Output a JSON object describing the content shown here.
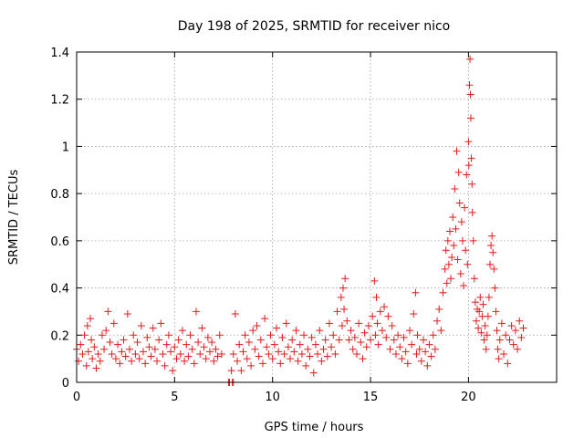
{
  "chart_data": {
    "type": "scatter",
    "title": "Day 198 of 2025, SRMTID for receiver nico",
    "xlabel": "GPS time / hours",
    "ylabel": "SRMTID / TECUs",
    "xlim": [
      0,
      24.5
    ],
    "ylim": [
      0,
      1.4
    ],
    "xticks": [
      0,
      5,
      10,
      15,
      20
    ],
    "yticks": [
      0,
      0.2,
      0.4,
      0.6,
      0.8,
      1.0,
      1.2,
      1.4
    ],
    "xtick_labels": [
      "0",
      "5",
      "10",
      "15",
      "20"
    ],
    "ytick_labels": [
      "0",
      "0.2",
      "0.4",
      "0.6",
      "0.8",
      "1",
      "1.2",
      "1.4"
    ],
    "grid": true,
    "marker": "+",
    "color": "#e41a1c",
    "series": [
      {
        "name": "SRMTID",
        "points": [
          [
            0.0,
            0.14
          ],
          [
            0.1,
            0.09
          ],
          [
            0.2,
            0.16
          ],
          [
            0.3,
            0.12
          ],
          [
            0.4,
            0.2
          ],
          [
            0.5,
            0.07
          ],
          [
            0.55,
            0.24
          ],
          [
            0.6,
            0.13
          ],
          [
            0.7,
            0.27
          ],
          [
            0.75,
            0.18
          ],
          [
            0.8,
            0.1
          ],
          [
            0.9,
            0.15
          ],
          [
            1.0,
            0.06
          ],
          [
            1.1,
            0.12
          ],
          [
            1.2,
            0.09
          ],
          [
            1.3,
            0.2
          ],
          [
            1.4,
            0.14
          ],
          [
            1.5,
            0.22
          ],
          [
            1.6,
            0.3
          ],
          [
            1.7,
            0.17
          ],
          [
            1.8,
            0.12
          ],
          [
            1.9,
            0.25
          ],
          [
            2.0,
            0.1
          ],
          [
            2.1,
            0.16
          ],
          [
            2.2,
            0.08
          ],
          [
            2.3,
            0.13
          ],
          [
            2.4,
            0.18
          ],
          [
            2.5,
            0.11
          ],
          [
            2.6,
            0.29
          ],
          [
            2.7,
            0.14
          ],
          [
            2.8,
            0.09
          ],
          [
            2.9,
            0.2
          ],
          [
            3.0,
            0.12
          ],
          [
            3.1,
            0.17
          ],
          [
            3.2,
            0.1
          ],
          [
            3.3,
            0.24
          ],
          [
            3.4,
            0.13
          ],
          [
            3.5,
            0.08
          ],
          [
            3.6,
            0.19
          ],
          [
            3.7,
            0.15
          ],
          [
            3.8,
            0.11
          ],
          [
            3.9,
            0.23
          ],
          [
            4.0,
            0.14
          ],
          [
            4.1,
            0.09
          ],
          [
            4.2,
            0.18
          ],
          [
            4.3,
            0.25
          ],
          [
            4.4,
            0.12
          ],
          [
            4.5,
            0.07
          ],
          [
            4.6,
            0.16
          ],
          [
            4.7,
            0.2
          ],
          [
            4.8,
            0.13
          ],
          [
            4.9,
            0.05
          ],
          [
            5.0,
            0.15
          ],
          [
            5.1,
            0.1
          ],
          [
            5.2,
            0.18
          ],
          [
            5.3,
            0.12
          ],
          [
            5.4,
            0.22
          ],
          [
            5.5,
            0.09
          ],
          [
            5.6,
            0.16
          ],
          [
            5.7,
            0.11
          ],
          [
            5.8,
            0.2
          ],
          [
            5.9,
            0.14
          ],
          [
            6.0,
            0.08
          ],
          [
            6.1,
            0.3
          ],
          [
            6.2,
            0.17
          ],
          [
            6.3,
            0.12
          ],
          [
            6.4,
            0.23
          ],
          [
            6.5,
            0.15
          ],
          [
            6.6,
            0.1
          ],
          [
            6.7,
            0.19
          ],
          [
            6.8,
            0.13
          ],
          [
            6.9,
            0.17
          ],
          [
            7.0,
            0.09
          ],
          [
            7.1,
            0.14
          ],
          [
            7.2,
            0.11
          ],
          [
            7.3,
            0.2
          ],
          [
            7.4,
            0.12
          ],
          [
            7.75,
            0.0
          ],
          [
            7.8,
            0.0
          ],
          [
            7.95,
            0.0
          ],
          [
            8.0,
            0.0
          ],
          [
            7.9,
            0.05
          ],
          [
            8.0,
            0.12
          ],
          [
            8.1,
            0.29
          ],
          [
            8.2,
            0.09
          ],
          [
            8.3,
            0.16
          ],
          [
            8.4,
            0.05
          ],
          [
            8.5,
            0.13
          ],
          [
            8.6,
            0.2
          ],
          [
            8.7,
            0.1
          ],
          [
            8.8,
            0.17
          ],
          [
            8.9,
            0.07
          ],
          [
            9.0,
            0.22
          ],
          [
            9.1,
            0.14
          ],
          [
            9.2,
            0.24
          ],
          [
            9.3,
            0.11
          ],
          [
            9.4,
            0.18
          ],
          [
            9.5,
            0.08
          ],
          [
            9.6,
            0.27
          ],
          [
            9.7,
            0.15
          ],
          [
            9.8,
            0.12
          ],
          [
            9.9,
            0.2
          ],
          [
            10.0,
            0.1
          ],
          [
            10.1,
            0.16
          ],
          [
            10.2,
            0.23
          ],
          [
            10.3,
            0.13
          ],
          [
            10.4,
            0.08
          ],
          [
            10.5,
            0.19
          ],
          [
            10.6,
            0.12
          ],
          [
            10.7,
            0.25
          ],
          [
            10.8,
            0.15
          ],
          [
            10.9,
            0.1
          ],
          [
            11.0,
            0.18
          ],
          [
            11.1,
            0.13
          ],
          [
            11.2,
            0.22
          ],
          [
            11.3,
            0.09
          ],
          [
            11.4,
            0.16
          ],
          [
            11.5,
            0.12
          ],
          [
            11.6,
            0.2
          ],
          [
            11.7,
            0.07
          ],
          [
            11.8,
            0.14
          ],
          [
            11.9,
            0.11
          ],
          [
            12.0,
            0.19
          ],
          [
            12.1,
            0.04
          ],
          [
            12.2,
            0.16
          ],
          [
            12.3,
            0.12
          ],
          [
            12.4,
            0.22
          ],
          [
            12.5,
            0.09
          ],
          [
            12.6,
            0.14
          ],
          [
            12.7,
            0.18
          ],
          [
            12.8,
            0.11
          ],
          [
            12.9,
            0.25
          ],
          [
            13.0,
            0.15
          ],
          [
            13.1,
            0.2
          ],
          [
            13.2,
            0.12
          ],
          [
            13.3,
            0.3
          ],
          [
            13.4,
            0.18
          ],
          [
            13.5,
            0.36
          ],
          [
            13.55,
            0.24
          ],
          [
            13.6,
            0.4
          ],
          [
            13.65,
            0.31
          ],
          [
            13.7,
            0.44
          ],
          [
            13.8,
            0.26
          ],
          [
            13.9,
            0.18
          ],
          [
            14.0,
            0.22
          ],
          [
            14.1,
            0.14
          ],
          [
            14.2,
            0.19
          ],
          [
            14.3,
            0.12
          ],
          [
            14.4,
            0.25
          ],
          [
            14.5,
            0.17
          ],
          [
            14.6,
            0.1
          ],
          [
            14.7,
            0.21
          ],
          [
            14.8,
            0.15
          ],
          [
            14.9,
            0.24
          ],
          [
            15.0,
            0.18
          ],
          [
            15.1,
            0.28
          ],
          [
            15.2,
            0.43
          ],
          [
            15.25,
            0.2
          ],
          [
            15.3,
            0.36
          ],
          [
            15.35,
            0.25
          ],
          [
            15.4,
            0.16
          ],
          [
            15.5,
            0.3
          ],
          [
            15.6,
            0.22
          ],
          [
            15.7,
            0.32
          ],
          [
            15.8,
            0.19
          ],
          [
            15.9,
            0.28
          ],
          [
            16.0,
            0.14
          ],
          [
            16.1,
            0.24
          ],
          [
            16.2,
            0.18
          ],
          [
            16.3,
            0.12
          ],
          [
            16.4,
            0.2
          ],
          [
            16.5,
            0.15
          ],
          [
            16.6,
            0.1
          ],
          [
            16.7,
            0.19
          ],
          [
            16.8,
            0.13
          ],
          [
            16.9,
            0.08
          ],
          [
            17.0,
            0.22
          ],
          [
            17.1,
            0.16
          ],
          [
            17.2,
            0.29
          ],
          [
            17.3,
            0.38
          ],
          [
            17.35,
            0.12
          ],
          [
            17.4,
            0.2
          ],
          [
            17.5,
            0.14
          ],
          [
            17.6,
            0.09
          ],
          [
            17.7,
            0.18
          ],
          [
            17.8,
            0.13
          ],
          [
            17.9,
            0.07
          ],
          [
            18.0,
            0.16
          ],
          [
            18.1,
            0.11
          ],
          [
            18.2,
            0.2
          ],
          [
            18.3,
            0.14
          ],
          [
            18.4,
            0.26
          ],
          [
            18.5,
            0.31
          ],
          [
            18.6,
            0.22
          ],
          [
            18.7,
            0.38
          ],
          [
            18.8,
            0.48
          ],
          [
            18.85,
            0.56
          ],
          [
            18.9,
            0.42
          ],
          [
            18.95,
            0.6
          ],
          [
            19.0,
            0.5
          ],
          [
            19.05,
            0.64
          ],
          [
            19.1,
            0.44
          ],
          [
            19.15,
            0.53
          ],
          [
            19.2,
            0.7
          ],
          [
            19.25,
            0.58
          ],
          [
            19.3,
            0.82
          ],
          [
            19.35,
            0.65
          ],
          [
            19.4,
            0.98
          ],
          [
            19.45,
            0.52
          ],
          [
            19.5,
            0.89
          ],
          [
            19.55,
            0.76
          ],
          [
            19.6,
            0.46
          ],
          [
            19.65,
            0.68
          ],
          [
            19.7,
            0.6
          ],
          [
            19.75,
            0.41
          ],
          [
            19.8,
            0.74
          ],
          [
            19.85,
            0.56
          ],
          [
            19.9,
            0.88
          ],
          [
            19.95,
            0.5
          ],
          [
            20.0,
            1.02
          ],
          [
            20.02,
            0.92
          ],
          [
            20.05,
            1.26
          ],
          [
            20.08,
            1.37
          ],
          [
            20.1,
            1.22
          ],
          [
            20.12,
            1.12
          ],
          [
            20.15,
            0.95
          ],
          [
            20.18,
            0.84
          ],
          [
            20.2,
            0.72
          ],
          [
            20.25,
            0.6
          ],
          [
            20.3,
            0.44
          ],
          [
            20.35,
            0.34
          ],
          [
            20.4,
            0.26
          ],
          [
            20.45,
            0.31
          ],
          [
            20.5,
            0.23
          ],
          [
            20.55,
            0.3
          ],
          [
            20.6,
            0.36
          ],
          [
            20.65,
            0.21
          ],
          [
            20.7,
            0.28
          ],
          [
            20.75,
            0.33
          ],
          [
            20.8,
            0.18
          ],
          [
            20.85,
            0.24
          ],
          [
            20.9,
            0.14
          ],
          [
            20.95,
            0.2
          ],
          [
            21.0,
            0.28
          ],
          [
            21.05,
            0.36
          ],
          [
            21.1,
            0.5
          ],
          [
            21.15,
            0.58
          ],
          [
            21.2,
            0.62
          ],
          [
            21.25,
            0.55
          ],
          [
            21.3,
            0.48
          ],
          [
            21.35,
            0.4
          ],
          [
            21.4,
            0.3
          ],
          [
            21.45,
            0.22
          ],
          [
            21.5,
            0.14
          ],
          [
            21.55,
            0.1
          ],
          [
            21.6,
            0.18
          ],
          [
            21.7,
            0.25
          ],
          [
            21.8,
            0.12
          ],
          [
            21.9,
            0.2
          ],
          [
            22.0,
            0.08
          ],
          [
            22.1,
            0.18
          ],
          [
            22.2,
            0.24
          ],
          [
            22.3,
            0.16
          ],
          [
            22.4,
            0.22
          ],
          [
            22.5,
            0.14
          ],
          [
            22.6,
            0.26
          ],
          [
            22.7,
            0.19
          ],
          [
            22.8,
            0.23
          ]
        ]
      }
    ]
  }
}
